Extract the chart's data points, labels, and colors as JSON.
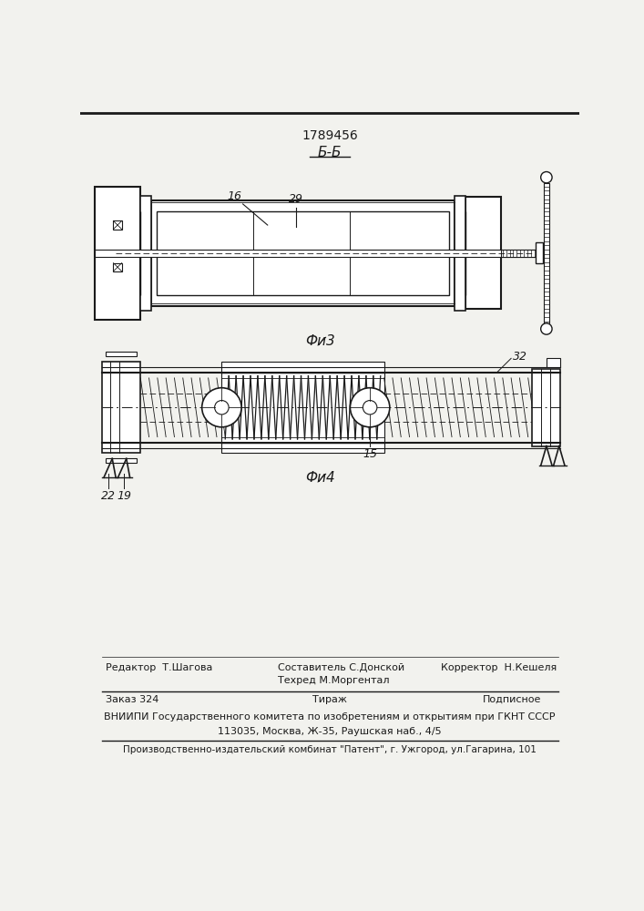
{
  "patent_number": "1789456",
  "section_label": "Б-Б",
  "fig3_label": "Фи̷3",
  "fig4_label": "Фи̷4",
  "editor_line1": "Редактор  Т.Шагова",
  "composer_line1": "Составитель С.Донской",
  "composer_line2": "Техред М.Моргентал",
  "corrector_line": "Корректор  Н.Кешеля",
  "order_line": "Заказ 324",
  "tirazh_line": "Тираж",
  "podpisnoe_line": "Подписное",
  "vniiipi_line1": "ВНИИПИ Государственного комитета по изобретениям и открытиям при ГКНТ СССР",
  "vniiipi_line2": "113035, Москва, Ж-35, Раушская наб., 4/5",
  "proizv_line": "Производственно-издательский комбинат \"Патент\", г. Ужгород, ул.Гагарина, 101",
  "bg_color": "#f2f2ee",
  "line_color": "#1a1a1a"
}
